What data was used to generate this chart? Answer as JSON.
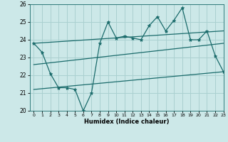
{
  "title": "",
  "xlabel": "Humidex (Indice chaleur)",
  "ylabel": "",
  "bg_color": "#cce8e8",
  "grid_color": "#aad0d0",
  "line_color": "#1a6b6b",
  "xlim": [
    -0.5,
    23
  ],
  "ylim": [
    20,
    26
  ],
  "yticks": [
    20,
    21,
    22,
    23,
    24,
    25,
    26
  ],
  "xticks": [
    0,
    1,
    2,
    3,
    4,
    5,
    6,
    7,
    8,
    9,
    10,
    11,
    12,
    13,
    14,
    15,
    16,
    17,
    18,
    19,
    20,
    21,
    22,
    23
  ],
  "line1_x": [
    0,
    1,
    2,
    3,
    4,
    5,
    6,
    7,
    8,
    9,
    10,
    11,
    12,
    13,
    14,
    15,
    16,
    17,
    18,
    19,
    20,
    21,
    22,
    23
  ],
  "line1_y": [
    23.8,
    23.3,
    22.1,
    21.3,
    21.3,
    21.2,
    20.0,
    21.0,
    23.8,
    25.0,
    24.1,
    24.2,
    24.1,
    24.0,
    24.8,
    25.3,
    24.5,
    25.1,
    25.8,
    24.0,
    24.0,
    24.5,
    23.1,
    22.2
  ],
  "line2_x": [
    0,
    23
  ],
  "line2_y": [
    23.8,
    24.5
  ],
  "line3_x": [
    0,
    23
  ],
  "line3_y": [
    22.6,
    23.8
  ],
  "line4_x": [
    0,
    23
  ],
  "line4_y": [
    21.2,
    22.2
  ]
}
